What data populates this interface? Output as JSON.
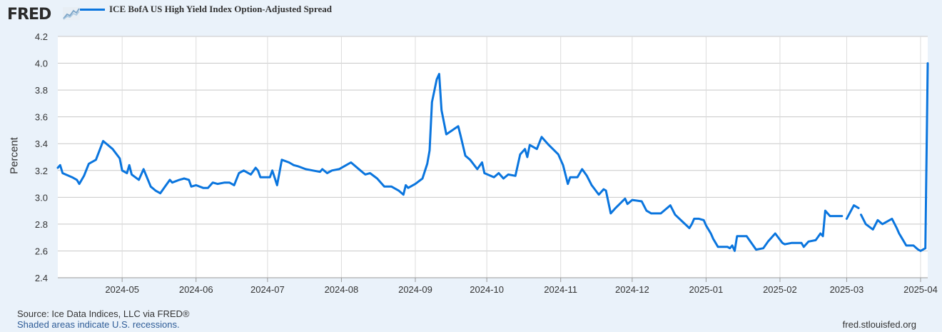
{
  "header": {
    "logo_text": "FRED",
    "legend_label": "ICE BofA US High Yield Index Option-Adjusted Spread",
    "legend_color": "#0a75de"
  },
  "footer": {
    "source": "Source: Ice Data Indices, LLC via FRED®",
    "recessions": "Shaded areas indicate U.S. recessions.",
    "site": "fred.stlouisfed.org"
  },
  "chart_data": {
    "type": "line",
    "title": "",
    "xlabel": "",
    "ylabel": "Percent",
    "ylim": [
      2.4,
      4.2
    ],
    "yticks": [
      "2.4",
      "2.6",
      "2.8",
      "3.0",
      "3.2",
      "3.4",
      "3.6",
      "3.8",
      "4.0",
      "4.2"
    ],
    "xticks": [
      "2024-05",
      "2024-06",
      "2024-07",
      "2024-08",
      "2024-09",
      "2024-10",
      "2024-11",
      "2024-12",
      "2025-01",
      "2025-02",
      "2025-03",
      "2025-04"
    ],
    "xlim": [
      "2024-04-04",
      "2025-04-04"
    ],
    "grid": true,
    "legend_position": "top-left",
    "series": [
      {
        "name": "ICE BofA US High Yield Index Option-Adjusted Spread",
        "color": "#0a75de",
        "segments": [
          [
            [
              "2024-04-04",
              3.22
            ],
            [
              "2024-04-05",
              3.24
            ],
            [
              "2024-04-06",
              3.18
            ],
            [
              "2024-04-10",
              3.15
            ],
            [
              "2024-04-12",
              3.13
            ],
            [
              "2024-04-13",
              3.1
            ],
            [
              "2024-04-15",
              3.16
            ],
            [
              "2024-04-17",
              3.25
            ],
            [
              "2024-04-20",
              3.28
            ],
            [
              "2024-04-23",
              3.42
            ],
            [
              "2024-04-27",
              3.36
            ],
            [
              "2024-04-30",
              3.29
            ],
            [
              "2024-05-01",
              3.2
            ],
            [
              "2024-05-03",
              3.18
            ],
            [
              "2024-05-04",
              3.24
            ],
            [
              "2024-05-05",
              3.17
            ],
            [
              "2024-05-08",
              3.13
            ],
            [
              "2024-05-10",
              3.21
            ],
            [
              "2024-05-13",
              3.08
            ],
            [
              "2024-05-15",
              3.05
            ],
            [
              "2024-05-17",
              3.03
            ],
            [
              "2024-05-19",
              3.08
            ],
            [
              "2024-05-21",
              3.13
            ],
            [
              "2024-05-22",
              3.11
            ],
            [
              "2024-05-25",
              3.13
            ],
            [
              "2024-05-27",
              3.14
            ],
            [
              "2024-05-29",
              3.13
            ],
            [
              "2024-05-30",
              3.08
            ],
            [
              "2024-06-01",
              3.09
            ],
            [
              "2024-06-04",
              3.07
            ],
            [
              "2024-06-06",
              3.07
            ],
            [
              "2024-06-08",
              3.11
            ],
            [
              "2024-06-10",
              3.1
            ],
            [
              "2024-06-13",
              3.11
            ],
            [
              "2024-06-15",
              3.11
            ],
            [
              "2024-06-17",
              3.09
            ],
            [
              "2024-06-19",
              3.18
            ],
            [
              "2024-06-21",
              3.2
            ],
            [
              "2024-06-24",
              3.17
            ],
            [
              "2024-06-26",
              3.22
            ],
            [
              "2024-06-27",
              3.2
            ],
            [
              "2024-06-28",
              3.15
            ],
            [
              "2024-07-02",
              3.15
            ],
            [
              "2024-07-03",
              3.2
            ],
            [
              "2024-07-05",
              3.09
            ],
            [
              "2024-07-07",
              3.28
            ],
            [
              "2024-07-10",
              3.26
            ],
            [
              "2024-07-12",
              3.24
            ],
            [
              "2024-07-14",
              3.23
            ],
            [
              "2024-07-17",
              3.21
            ],
            [
              "2024-07-20",
              3.2
            ],
            [
              "2024-07-23",
              3.19
            ],
            [
              "2024-07-24",
              3.21
            ],
            [
              "2024-07-26",
              3.18
            ],
            [
              "2024-07-28",
              3.2
            ],
            [
              "2024-07-31",
              3.21
            ],
            [
              "2024-08-03",
              3.24
            ],
            [
              "2024-08-05",
              3.26
            ],
            [
              "2024-08-09",
              3.2
            ],
            [
              "2024-08-11",
              3.17
            ],
            [
              "2024-08-13",
              3.18
            ],
            [
              "2024-08-16",
              3.14
            ],
            [
              "2024-08-19",
              3.08
            ],
            [
              "2024-08-22",
              3.08
            ],
            [
              "2024-08-25",
              3.05
            ],
            [
              "2024-08-27",
              3.02
            ],
            [
              "2024-08-28",
              3.09
            ],
            [
              "2024-08-29",
              3.07
            ],
            [
              "2024-09-01",
              3.1
            ],
            [
              "2024-09-04",
              3.14
            ],
            [
              "2024-09-06",
              3.25
            ],
            [
              "2024-09-07",
              3.35
            ],
            [
              "2024-09-08",
              3.71
            ],
            [
              "2024-09-10",
              3.88
            ],
            [
              "2024-09-11",
              3.92
            ],
            [
              "2024-09-12",
              3.65
            ],
            [
              "2024-09-14",
              3.47
            ],
            [
              "2024-09-19",
              3.53
            ],
            [
              "2024-09-20",
              3.46
            ],
            [
              "2024-09-22",
              3.31
            ],
            [
              "2024-09-24",
              3.28
            ],
            [
              "2024-09-27",
              3.21
            ],
            [
              "2024-09-29",
              3.26
            ],
            [
              "2024-09-30",
              3.18
            ],
            [
              "2024-10-04",
              3.15
            ],
            [
              "2024-10-06",
              3.18
            ],
            [
              "2024-10-08",
              3.14
            ],
            [
              "2024-10-10",
              3.17
            ],
            [
              "2024-10-13",
              3.16
            ],
            [
              "2024-10-15",
              3.32
            ],
            [
              "2024-10-17",
              3.36
            ],
            [
              "2024-10-18",
              3.3
            ],
            [
              "2024-10-19",
              3.39
            ],
            [
              "2024-10-22",
              3.36
            ],
            [
              "2024-10-24",
              3.45
            ],
            [
              "2024-10-25",
              3.43
            ],
            [
              "2024-10-27",
              3.39
            ],
            [
              "2024-10-31",
              3.32
            ],
            [
              "2024-11-02",
              3.24
            ],
            [
              "2024-11-04",
              3.1
            ],
            [
              "2024-11-05",
              3.15
            ],
            [
              "2024-11-08",
              3.15
            ],
            [
              "2024-11-10",
              3.21
            ],
            [
              "2024-11-12",
              3.16
            ],
            [
              "2024-11-14",
              3.09
            ],
            [
              "2024-11-17",
              3.02
            ],
            [
              "2024-11-19",
              3.06
            ],
            [
              "2024-11-20",
              3.05
            ],
            [
              "2024-11-22",
              2.88
            ],
            [
              "2024-11-24",
              2.92
            ],
            [
              "2024-11-28",
              2.99
            ],
            [
              "2024-11-29",
              2.95
            ],
            [
              "2024-12-01",
              2.98
            ],
            [
              "2024-12-05",
              2.97
            ],
            [
              "2024-12-07",
              2.9
            ],
            [
              "2024-12-09",
              2.88
            ],
            [
              "2024-12-13",
              2.88
            ],
            [
              "2024-12-17",
              2.94
            ],
            [
              "2024-12-19",
              2.87
            ],
            [
              "2024-12-22",
              2.82
            ],
            [
              "2024-12-25",
              2.77
            ],
            [
              "2024-12-26",
              2.8
            ],
            [
              "2024-12-27",
              2.84
            ],
            [
              "2024-12-29",
              2.84
            ],
            [
              "2024-12-31",
              2.83
            ],
            [
              "2025-01-01",
              2.79
            ],
            [
              "2025-01-03",
              2.73
            ],
            [
              "2025-01-04",
              2.69
            ],
            [
              "2025-01-06",
              2.63
            ],
            [
              "2025-01-10",
              2.63
            ],
            [
              "2025-01-11",
              2.62
            ],
            [
              "2025-01-12",
              2.64
            ],
            [
              "2025-01-13",
              2.6
            ],
            [
              "2025-01-14",
              2.71
            ],
            [
              "2025-01-18",
              2.71
            ],
            [
              "2025-01-20",
              2.66
            ],
            [
              "2025-01-22",
              2.61
            ],
            [
              "2025-01-25",
              2.62
            ],
            [
              "2025-01-27",
              2.67
            ],
            [
              "2025-01-30",
              2.73
            ],
            [
              "2025-02-02",
              2.66
            ],
            [
              "2025-02-03",
              2.65
            ],
            [
              "2025-02-06",
              2.66
            ],
            [
              "2025-02-07",
              2.66
            ],
            [
              "2025-02-10",
              2.66
            ],
            [
              "2025-02-11",
              2.63
            ],
            [
              "2025-02-13",
              2.67
            ],
            [
              "2025-02-16",
              2.68
            ],
            [
              "2025-02-18",
              2.73
            ],
            [
              "2025-02-19",
              2.71
            ],
            [
              "2025-02-20",
              2.9
            ],
            [
              "2025-02-22",
              2.86
            ],
            [
              "2025-02-25",
              2.86
            ],
            [
              "2025-02-27",
              2.86
            ]
          ],
          [
            [
              "2025-03-01",
              2.84
            ],
            [
              "2025-03-04",
              2.94
            ],
            [
              "2025-03-06",
              2.92
            ]
          ],
          [
            [
              "2025-03-07",
              2.87
            ],
            [
              "2025-03-09",
              2.8
            ],
            [
              "2025-03-12",
              2.76
            ],
            [
              "2025-03-14",
              2.83
            ],
            [
              "2025-03-16",
              2.8
            ],
            [
              "2025-03-20",
              2.84
            ],
            [
              "2025-03-22",
              2.77
            ],
            [
              "2025-03-23",
              2.73
            ],
            [
              "2025-03-24",
              2.7
            ],
            [
              "2025-03-26",
              2.64
            ],
            [
              "2025-03-29",
              2.64
            ],
            [
              "2025-03-31",
              2.61
            ],
            [
              "2025-04-01",
              2.6
            ],
            [
              "2025-04-02",
              2.61
            ],
            [
              "2025-04-03",
              2.62
            ],
            [
              "2025-04-04",
              4.0
            ]
          ]
        ]
      }
    ]
  }
}
